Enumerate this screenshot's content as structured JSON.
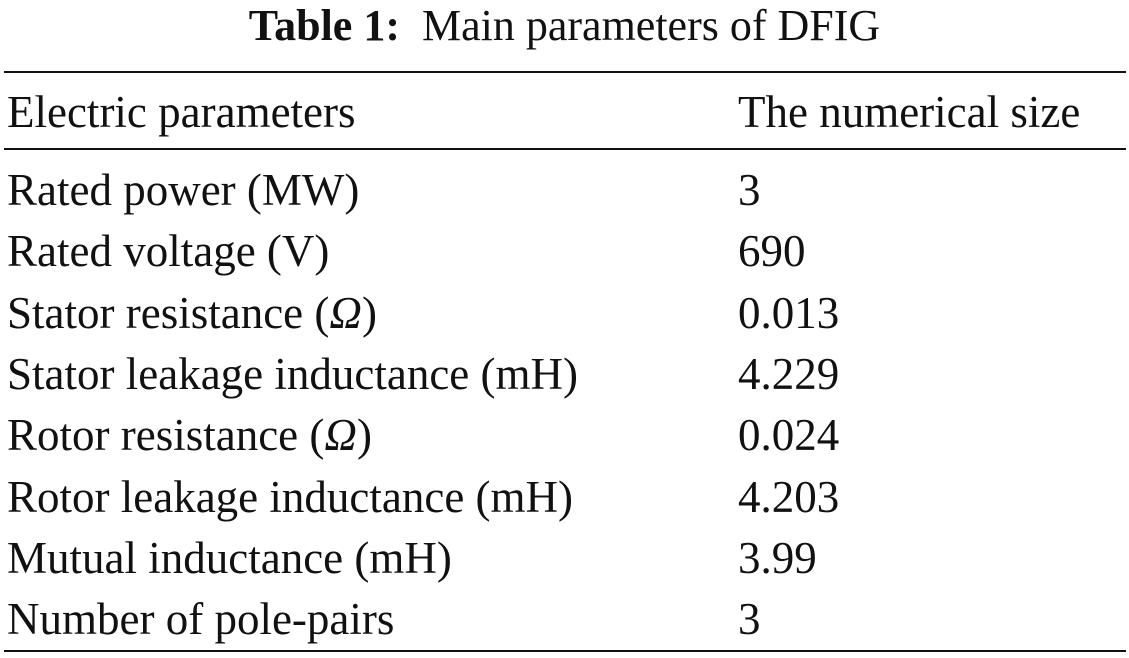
{
  "table": {
    "label": "Table 1:",
    "caption": "Main parameters of DFIG",
    "headers": [
      "Electric parameters",
      "The numerical size"
    ],
    "rows": [
      [
        "Rated power (MW)",
        "3"
      ],
      [
        "Rated voltage (V)",
        "690"
      ],
      [
        "Stator resistance (Ω)",
        "0.013"
      ],
      [
        "Stator leakage inductance (mH)",
        "4.229"
      ],
      [
        "Rotor resistance (Ω)",
        "0.024"
      ],
      [
        "Rotor leakage inductance (mH)",
        "4.203"
      ],
      [
        "Mutual inductance (mH)",
        "3.99"
      ],
      [
        "Number of pole-pairs",
        "3"
      ]
    ]
  }
}
